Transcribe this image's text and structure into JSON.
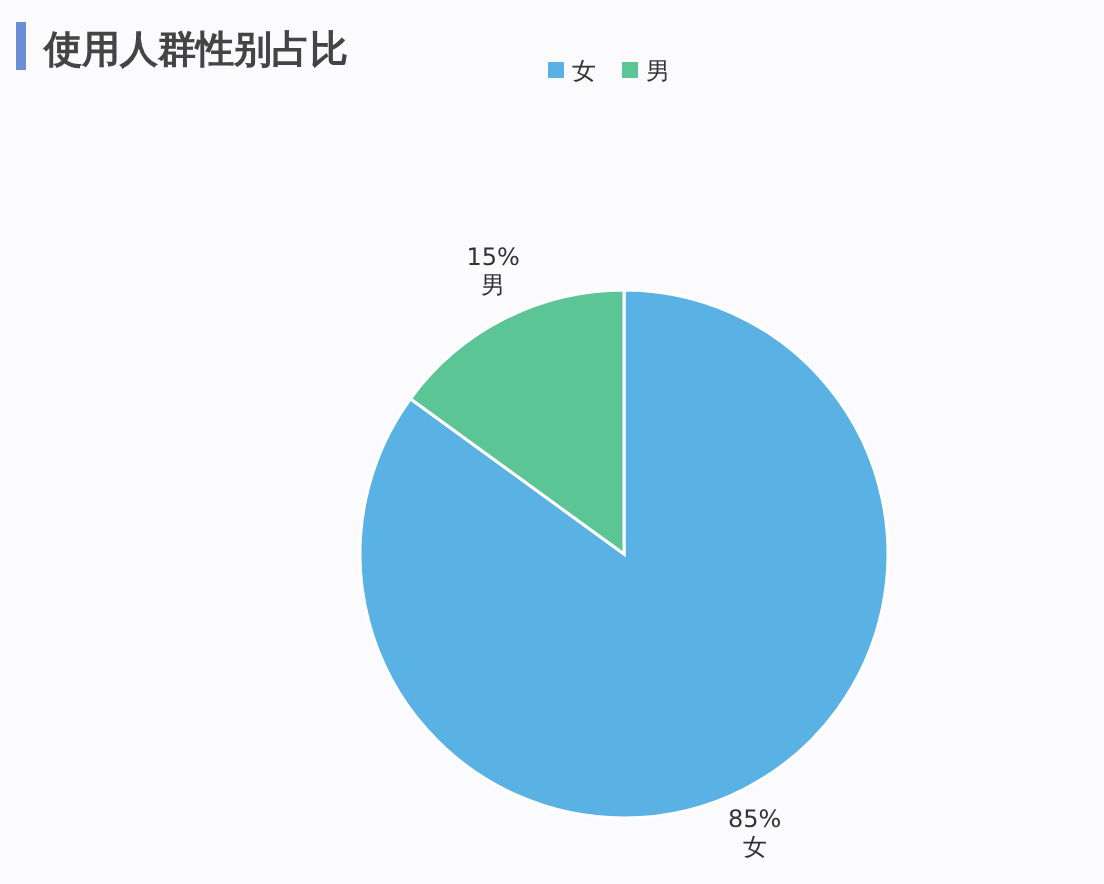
{
  "chart_data": {
    "type": "pie",
    "title": "使用人群性别占比",
    "categories": [
      "女",
      "男"
    ],
    "values": [
      85,
      15
    ],
    "colors": [
      "#5ab1e3",
      "#5bc595"
    ],
    "value_labels": [
      "85%",
      "15%"
    ],
    "legend": "top"
  }
}
